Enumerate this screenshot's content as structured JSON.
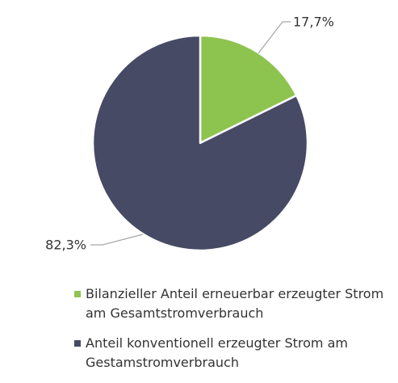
{
  "chart_data": {
    "type": "pie",
    "slices": [
      {
        "label": "Bilanzieller Anteil erneuerbar erzeugter Strom am Gesamtstromverbrauch",
        "value": 17.7,
        "value_label": "17,7%",
        "color": "#8dc34f"
      },
      {
        "label": "Anteil konventionell erzeugter Strom am Gestamstromverbrauch",
        "value": 82.3,
        "value_label": "82,3%",
        "color": "#474a64"
      }
    ],
    "start_angle_deg": 0,
    "direction": "clockwise",
    "legend_position": "bottom",
    "label_color": "#333333",
    "leader_color": "#a6a6a6"
  },
  "legend": {
    "items": [
      {
        "label": "Bilanzieller Anteil erneuerbar erzeugter Strom am Gesamtstromverbrauch",
        "color": "#8dc34f"
      },
      {
        "label": "Anteil konventionell erzeugter Strom am Gestamstromverbrauch",
        "color": "#474a64"
      }
    ]
  }
}
